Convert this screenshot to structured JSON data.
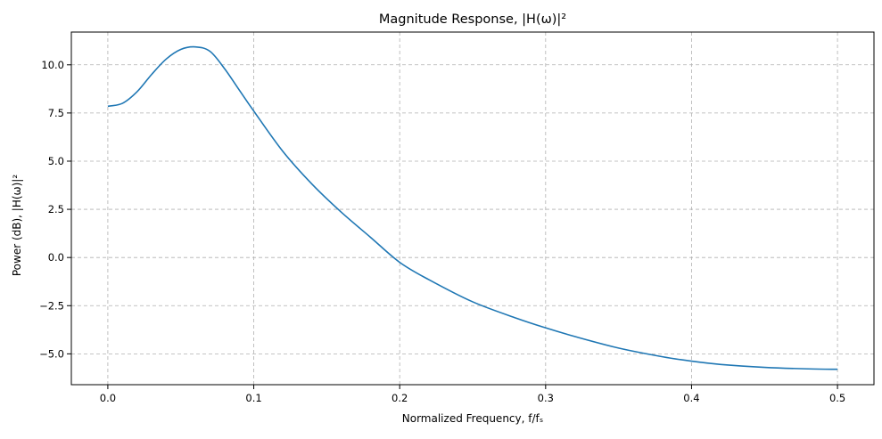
{
  "chart_data": {
    "type": "line",
    "title": "Magnitude Response, |H(ω)|²",
    "xlabel": "Normalized Frequency, f/fₛ",
    "ylabel": "Power (dB), |H(ω)|²",
    "xlim": [
      -0.025,
      0.525
    ],
    "ylim": [
      -6.6,
      11.7
    ],
    "x_ticks": [
      0.0,
      0.1,
      0.2,
      0.3,
      0.4,
      0.5
    ],
    "x_tick_labels": [
      "0.0",
      "0.1",
      "0.2",
      "0.3",
      "0.4",
      "0.5"
    ],
    "y_ticks": [
      -5.0,
      -2.5,
      0.0,
      2.5,
      5.0,
      7.5,
      10.0
    ],
    "y_tick_labels": [
      "−5.0",
      "−2.5",
      "0.0",
      "2.5",
      "5.0",
      "7.5",
      "10.0"
    ],
    "grid": true,
    "series": [
      {
        "color": "#1f77b4",
        "x": [
          0.0,
          0.01,
          0.02,
          0.03,
          0.04,
          0.05,
          0.06,
          0.07,
          0.08,
          0.09,
          0.1,
          0.12,
          0.14,
          0.16,
          0.18,
          0.2,
          0.22,
          0.25,
          0.28,
          0.3,
          0.32,
          0.35,
          0.38,
          0.4,
          0.42,
          0.45,
          0.48,
          0.5
        ],
        "y": [
          7.85,
          8.0,
          8.6,
          9.5,
          10.3,
          10.8,
          10.93,
          10.7,
          9.8,
          8.7,
          7.6,
          5.5,
          3.8,
          2.35,
          1.05,
          -0.25,
          -1.15,
          -2.3,
          -3.15,
          -3.65,
          -4.1,
          -4.7,
          -5.15,
          -5.38,
          -5.55,
          -5.7,
          -5.78,
          -5.8
        ]
      }
    ]
  }
}
